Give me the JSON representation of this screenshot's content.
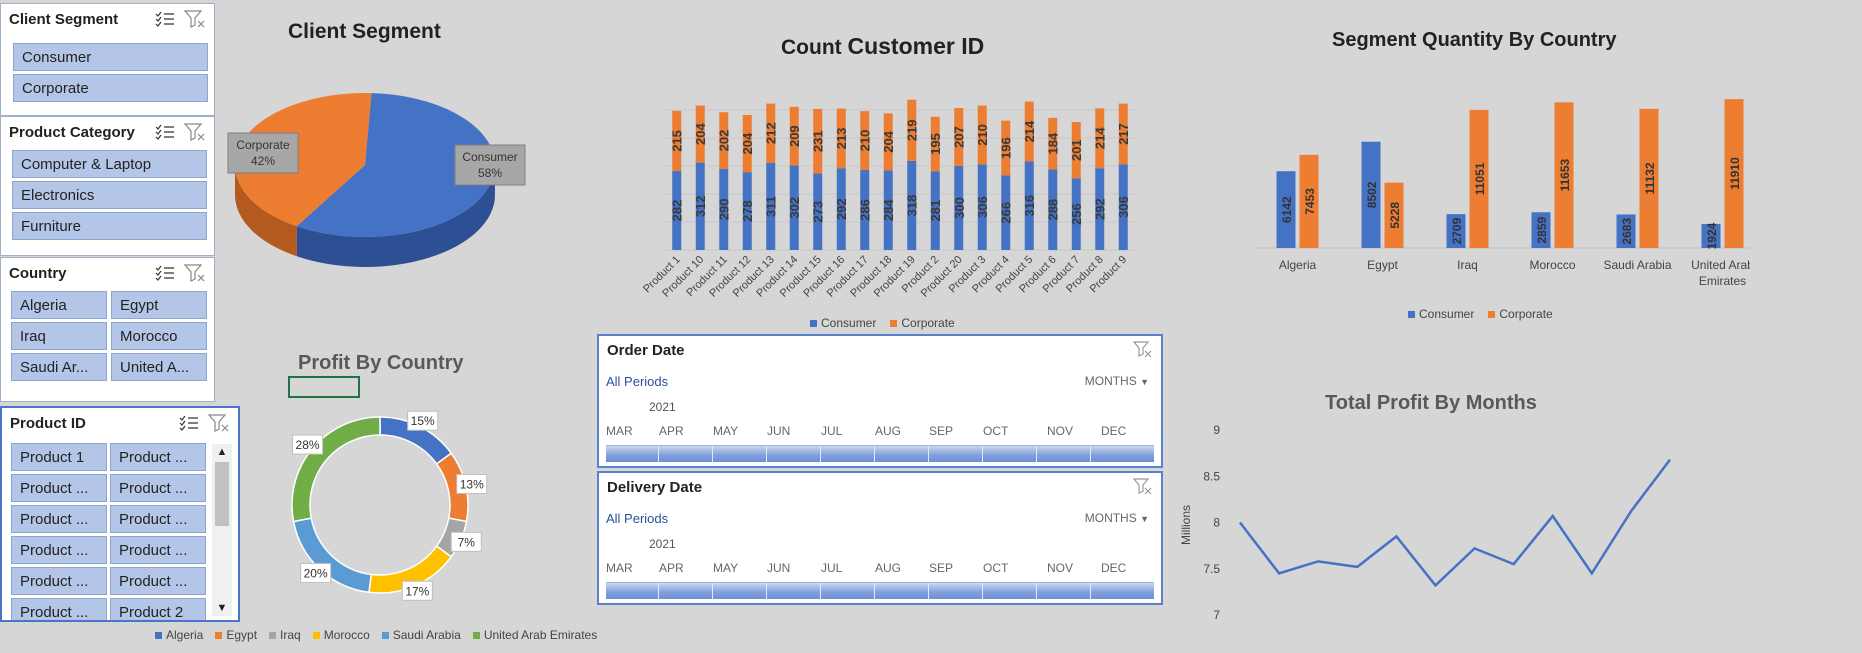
{
  "colors": {
    "consumer": "#4472c4",
    "corporate": "#ed7d31",
    "gray": "#a5a5a5",
    "yellow": "#ffc000",
    "lightblue": "#5b9bd5",
    "green": "#70ad47"
  },
  "slicers": {
    "client_segment": {
      "title": "Client Segment",
      "items": [
        "Consumer",
        "Corporate"
      ]
    },
    "product_category": {
      "title": "Product Category",
      "items": [
        "Computer & Laptop",
        "Electronics",
        "Furniture"
      ]
    },
    "country": {
      "title": "Country",
      "items": [
        "Algeria",
        "Egypt",
        "Iraq",
        "Morocco",
        "Saudi Ar...",
        "United A..."
      ]
    },
    "product_id": {
      "title": "Product ID",
      "items": [
        "Product 1",
        "Product ...",
        "Product ...",
        "Product ...",
        "Product ...",
        "Product ...",
        "Product ...",
        "Product ...",
        "Product ...",
        "Product ...",
        "Product ...",
        "Product 2"
      ]
    }
  },
  "titles": {
    "client_segment": "Client Segment",
    "count_prefix": "Count ",
    "count_main": "Customer ID",
    "segment_qty": "Segment Quantity By Country",
    "profit_country": "Profit By Country",
    "total_profit": "Total Profit By Months"
  },
  "timeline_order": {
    "title": "Order Date",
    "all_periods": "All Periods",
    "mode": "MONTHS",
    "year": "2021",
    "months": [
      "MAR",
      "APR",
      "MAY",
      "JUN",
      "JUL",
      "AUG",
      "SEP",
      "OCT",
      "NOV",
      "DEC"
    ]
  },
  "timeline_delivery": {
    "title": "Delivery Date",
    "all_periods": "All Periods",
    "mode": "MONTHS",
    "year": "2021",
    "months": [
      "MAR",
      "APR",
      "MAY",
      "JUN",
      "JUL",
      "AUG",
      "SEP",
      "OCT",
      "NOV",
      "DEC"
    ]
  },
  "chart_data": [
    {
      "id": "client_pie",
      "type": "pie",
      "title": "Client Segment",
      "slices": [
        {
          "name": "Consumer",
          "value": 58,
          "label": "Consumer",
          "pct": "58%"
        },
        {
          "name": "Corporate",
          "value": 42,
          "label": "Corporate",
          "pct": "42%"
        }
      ]
    },
    {
      "id": "count_bar",
      "type": "bar",
      "title": "Count Customer ID",
      "categories": [
        "Product 1",
        "Product 10",
        "Product 11",
        "Product 12",
        "Product 13",
        "Product 14",
        "Product 15",
        "Product 16",
        "Product 17",
        "Product 18",
        "Product 19",
        "Product 2",
        "Product 20",
        "Product 3",
        "Product 4",
        "Product 5",
        "Product 6",
        "Product 7",
        "Product 8",
        "Product 9"
      ],
      "series": [
        {
          "name": "Consumer",
          "values": [
            282,
            312,
            290,
            278,
            311,
            302,
            273,
            292,
            286,
            284,
            318,
            281,
            300,
            306,
            266,
            316,
            288,
            256,
            292,
            306
          ]
        },
        {
          "name": "Corporate",
          "values": [
            215,
            204,
            202,
            204,
            212,
            209,
            231,
            213,
            210,
            204,
            219,
            195,
            207,
            210,
            196,
            214,
            184,
            201,
            214,
            217
          ]
        }
      ],
      "stacked": true
    },
    {
      "id": "segment_qty",
      "type": "bar",
      "title": "Segment Quantity By Country",
      "categories": [
        "Algeria",
        "Egypt",
        "Iraq",
        "Morocco",
        "Saudi Arabia",
        "United Arab Emirates"
      ],
      "series": [
        {
          "name": "Consumer",
          "values": [
            6142,
            8502,
            2709,
            2859,
            2683,
            1924
          ]
        },
        {
          "name": "Corporate",
          "values": [
            7453,
            5228,
            11051,
            11653,
            11132,
            11910
          ]
        }
      ],
      "ylim": [
        0,
        13000
      ]
    },
    {
      "id": "profit_country",
      "type": "pie",
      "title": "Profit By Country",
      "donut": true,
      "slices": [
        {
          "name": "Algeria",
          "value": 15,
          "label": "15%"
        },
        {
          "name": "Egypt",
          "value": 13,
          "label": "13%"
        },
        {
          "name": "Iraq",
          "value": 7,
          "label": "7%"
        },
        {
          "name": "Morocco",
          "value": 17,
          "label": "17%"
        },
        {
          "name": "Saudi Arabia",
          "value": 20,
          "label": "20%"
        },
        {
          "name": "United Arab Emirates",
          "value": 28,
          "label": "28%"
        }
      ]
    },
    {
      "id": "total_profit",
      "type": "line",
      "title": "Total Profit By Months",
      "ylabel": "Millions",
      "y_ticks": [
        "9",
        "8.5",
        "8",
        "7.5",
        "7"
      ],
      "ylim": [
        7,
        9
      ],
      "values": [
        8.0,
        7.45,
        7.58,
        7.52,
        7.85,
        7.32,
        7.72,
        7.55,
        8.07,
        7.45,
        8.12,
        8.68
      ]
    }
  ]
}
